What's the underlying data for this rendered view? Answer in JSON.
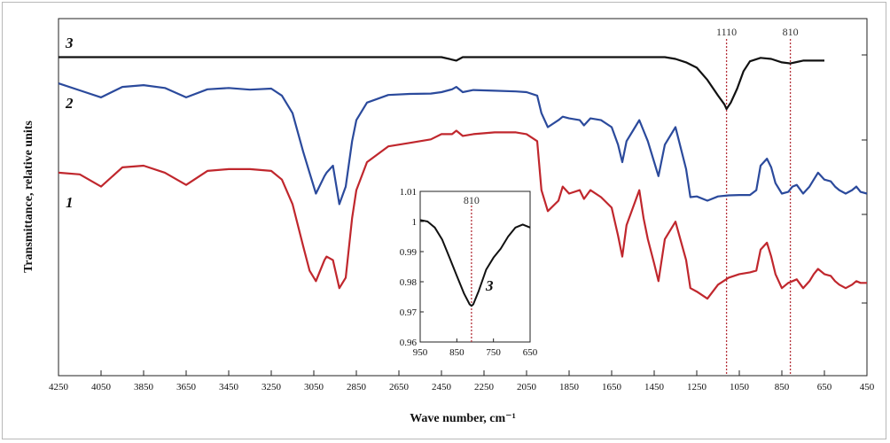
{
  "chart_data": [
    {
      "type": "line",
      "xlabel": "Wave number, cm⁻¹",
      "ylabel": "Transmittance, relative units",
      "xlim": [
        4250,
        450
      ],
      "x_reversed": true,
      "grid": false,
      "x_ticks": [
        "4250",
        "4050",
        "3850",
        "3650",
        "3450",
        "3250",
        "3050",
        "2850",
        "2650",
        "2450",
        "2250",
        "2050",
        "1850",
        "1650",
        "1450",
        "1250",
        "1050",
        "850",
        "650",
        "450"
      ],
      "markers": [
        {
          "x": 1110,
          "label": "1110"
        },
        {
          "x": 810,
          "label": "810"
        }
      ],
      "series": [
        {
          "name": "3",
          "color": "#111111",
          "x": [
            4250,
            4150,
            4050,
            3950,
            3850,
            3750,
            3650,
            3550,
            3450,
            3350,
            3250,
            3150,
            3050,
            2950,
            2850,
            2750,
            2650,
            2550,
            2450,
            2380,
            2350,
            2250,
            2150,
            2050,
            1950,
            1850,
            1750,
            1650,
            1550,
            1500,
            1450,
            1400,
            1350,
            1300,
            1250,
            1200,
            1150,
            1120,
            1110,
            1090,
            1060,
            1030,
            1000,
            950,
            900,
            850,
            810,
            780,
            750,
            700,
            650
          ],
          "y": [
            90,
            90,
            90,
            90,
            90,
            90,
            90,
            90,
            90,
            90,
            90,
            90,
            90,
            90,
            90,
            90,
            90,
            90,
            90,
            89,
            90,
            90,
            90,
            90,
            90,
            90,
            90,
            90,
            90,
            90,
            90,
            90,
            89.5,
            88.5,
            87,
            83.5,
            79,
            76.5,
            75.2,
            77,
            81,
            86,
            88.8,
            89.8,
            89.5,
            88.5,
            88.2,
            88.6,
            89,
            89,
            89
          ]
        },
        {
          "name": "2",
          "color": "#2b4a9c",
          "x": [
            4250,
            4150,
            4050,
            3950,
            3850,
            3750,
            3650,
            3550,
            3450,
            3350,
            3250,
            3200,
            3150,
            3100,
            3070,
            3040,
            3000,
            2990,
            2960,
            2930,
            2900,
            2870,
            2850,
            2800,
            2700,
            2600,
            2500,
            2450,
            2400,
            2380,
            2350,
            2300,
            2200,
            2100,
            2050,
            2000,
            1980,
            1950,
            1900,
            1880,
            1850,
            1800,
            1780,
            1750,
            1700,
            1650,
            1620,
            1600,
            1580,
            1550,
            1520,
            1500,
            1480,
            1450,
            1430,
            1400,
            1350,
            1300,
            1280,
            1250,
            1200,
            1150,
            1100,
            1050,
            1000,
            970,
            950,
            920,
            900,
            880,
            850,
            820,
            800,
            780,
            750,
            720,
            700,
            680,
            650,
            620,
            600,
            580,
            550,
            520,
            500,
            480,
            450
          ],
          "y": [
            82.5,
            80.5,
            78.5,
            81.5,
            82,
            81.2,
            78.5,
            80.8,
            81.2,
            80.7,
            81,
            79,
            74,
            63,
            57,
            51,
            56,
            57,
            59,
            48,
            53,
            66,
            72,
            77,
            79.2,
            79.5,
            79.6,
            80,
            80.8,
            81.5,
            80,
            80.6,
            80.4,
            80.2,
            80,
            79,
            74,
            70,
            72,
            73,
            72.5,
            72,
            70.5,
            72.5,
            72,
            70,
            65,
            60,
            66,
            69,
            72,
            69,
            66,
            60,
            56,
            65,
            70,
            58,
            50,
            50.2,
            49,
            50.2,
            50.5,
            50.6,
            50.6,
            52,
            59,
            61,
            58.5,
            54,
            51,
            51.5,
            53,
            53.5,
            51,
            53,
            55,
            57,
            55,
            54.5,
            53,
            52,
            51,
            52,
            53,
            51.5,
            51
          ]
        },
        {
          "name": "1",
          "color": "#c0272d",
          "x": [
            4250,
            4150,
            4050,
            3950,
            3850,
            3750,
            3650,
            3550,
            3450,
            3350,
            3250,
            3200,
            3150,
            3100,
            3070,
            3040,
            3000,
            2990,
            2960,
            2930,
            2900,
            2870,
            2850,
            2800,
            2700,
            2600,
            2500,
            2450,
            2400,
            2380,
            2350,
            2300,
            2200,
            2100,
            2050,
            2000,
            1980,
            1950,
            1900,
            1880,
            1850,
            1800,
            1780,
            1750,
            1700,
            1650,
            1620,
            1600,
            1580,
            1550,
            1520,
            1500,
            1480,
            1450,
            1430,
            1400,
            1350,
            1300,
            1280,
            1250,
            1200,
            1150,
            1100,
            1050,
            1000,
            970,
            950,
            920,
            900,
            880,
            850,
            820,
            800,
            780,
            750,
            720,
            700,
            680,
            650,
            620,
            600,
            580,
            550,
            520,
            500,
            480,
            450
          ],
          "y": [
            57,
            56.5,
            53,
            58.5,
            59,
            57,
            53.5,
            57.5,
            58,
            58,
            57.5,
            55,
            48,
            36,
            29,
            26,
            32,
            33,
            32,
            24,
            27,
            44,
            52,
            60,
            64.5,
            65.5,
            66.5,
            68,
            68,
            69,
            67.5,
            68,
            68.5,
            68.5,
            68,
            66,
            52,
            46,
            49,
            53,
            51,
            52,
            49.5,
            52,
            50,
            47,
            39,
            33,
            42,
            47,
            52,
            44,
            38,
            31,
            26,
            38,
            43,
            32,
            24,
            23,
            21,
            25,
            27,
            28,
            28.5,
            29,
            35,
            37,
            33,
            28,
            24,
            25.5,
            26,
            26.5,
            24,
            26,
            28,
            29.5,
            28,
            27.5,
            26,
            25,
            24,
            25,
            26,
            25.5,
            25.5
          ]
        }
      ]
    },
    {
      "type": "line",
      "series_label": "3",
      "xlim": [
        950,
        650
      ],
      "x_reversed": true,
      "ylim": [
        0.96,
        1.01
      ],
      "x_ticks": [
        "950",
        "850",
        "750",
        "650"
      ],
      "y_ticks": [
        "1.01",
        "1",
        "0.99",
        "0.98",
        "0.97",
        "0.96"
      ],
      "marker": {
        "x": 810,
        "label": "810"
      },
      "series": [
        {
          "name": "3",
          "color": "#111111",
          "x": [
            950,
            930,
            910,
            890,
            870,
            850,
            830,
            815,
            810,
            805,
            790,
            770,
            750,
            730,
            710,
            690,
            670,
            650
          ],
          "y": [
            1.0005,
            1.0,
            0.998,
            0.994,
            0.988,
            0.982,
            0.976,
            0.9725,
            0.972,
            0.9725,
            0.977,
            0.984,
            0.988,
            0.991,
            0.995,
            0.998,
            0.999,
            0.998
          ]
        }
      ]
    }
  ]
}
